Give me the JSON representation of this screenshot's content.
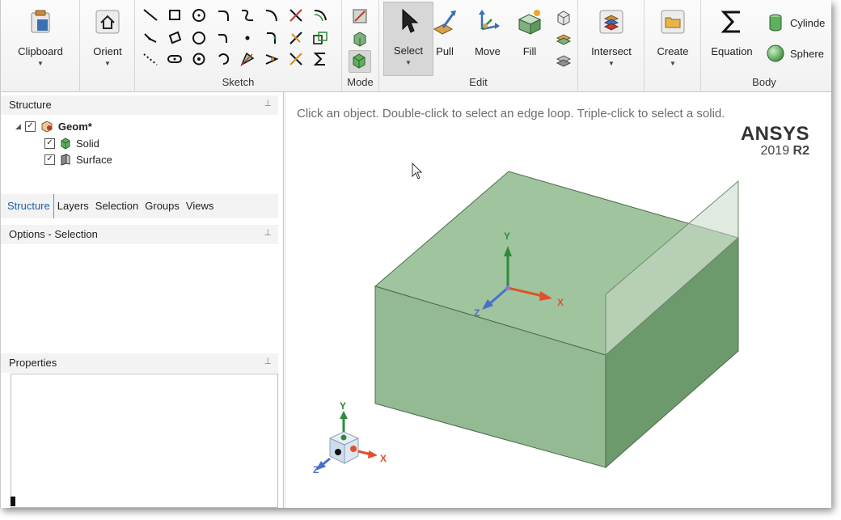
{
  "ribbon": {
    "clipboard_label": "Clipboard",
    "orient_label": "Orient",
    "sketch_group": "Sketch",
    "mode_group": "Mode",
    "select_label": "Select",
    "pull_label": "Pull",
    "move_label": "Move",
    "fill_label": "Fill",
    "edit_group": "Edit",
    "intersect_label": "Intersect",
    "create_label": "Create",
    "equation_label": "Equation",
    "cylinder_label": "Cylinde",
    "sphere_label": "Sphere",
    "body_group": "Body",
    "dropdown_glyph": "▼"
  },
  "structure": {
    "title": "Structure",
    "root_label": "Geom*",
    "children": [
      "Solid",
      "Surface"
    ]
  },
  "tabs": [
    "Structure",
    "Layers",
    "Selection",
    "Groups",
    "Views"
  ],
  "options_title": "Options - Selection",
  "properties_title": "Properties",
  "viewport": {
    "hint": "Click an object. Double-click to select an edge loop. Triple-click to select a solid.",
    "brand_name": "ANSYS",
    "brand_year": "2019",
    "brand_release": "R2",
    "axis_x": "X",
    "axis_y": "Y",
    "axis_z": "Z",
    "solid_color": "#9fc49e",
    "x_color": "#e0502a",
    "y_color": "#2e8b3a",
    "z_color": "#4a6fc9"
  }
}
